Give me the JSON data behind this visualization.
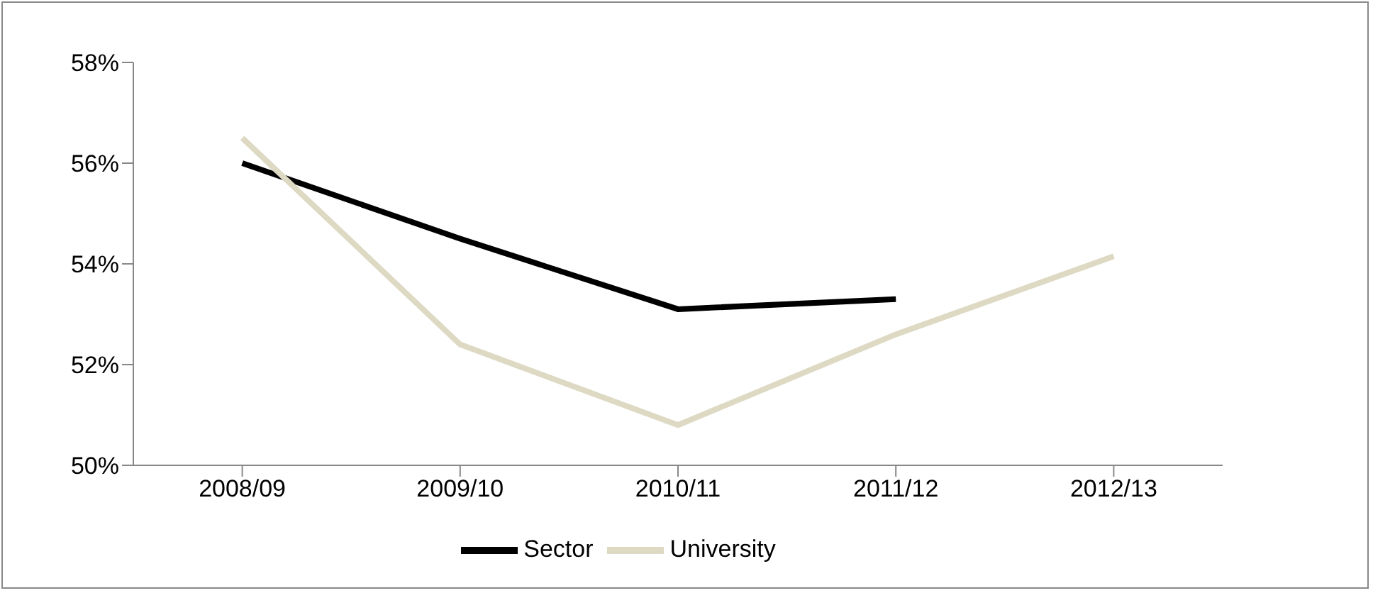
{
  "chart_data": {
    "type": "line",
    "categories": [
      "2008/09",
      "2009/10",
      "2010/11",
      "2011/12",
      "2012/13"
    ],
    "series": [
      {
        "name": "Sector",
        "color": "#000000",
        "values": [
          56.0,
          54.5,
          53.1,
          53.3,
          null
        ]
      },
      {
        "name": "University",
        "color": "#ddd9c3",
        "values": [
          56.5,
          52.4,
          50.8,
          52.6,
          54.15
        ]
      }
    ],
    "ylim": [
      50,
      58
    ],
    "yticks": [
      {
        "value": 50,
        "label": "50%"
      },
      {
        "value": 52,
        "label": "52%"
      },
      {
        "value": 54,
        "label": "54%"
      },
      {
        "value": 56,
        "label": "56%"
      },
      {
        "value": 58,
        "label": "58%"
      }
    ],
    "grid": false,
    "legend": "bottom",
    "marker": "none",
    "line_style": "solid"
  }
}
